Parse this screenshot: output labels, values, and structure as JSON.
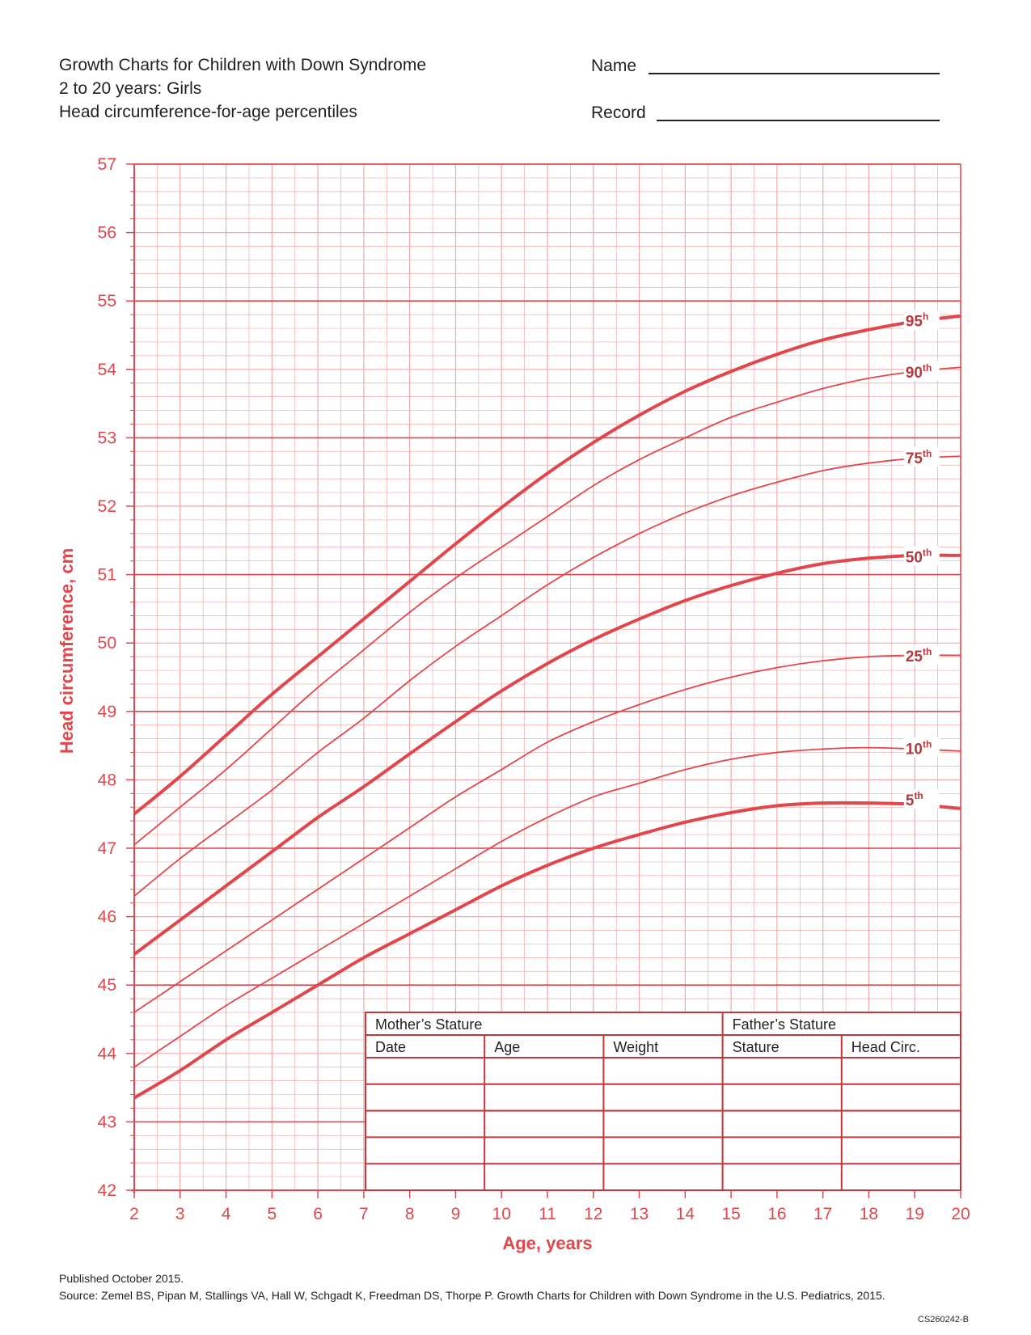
{
  "header": {
    "title": "Growth Charts for Children with Down Syndrome",
    "subtitle": "2 to 20 years: Girls",
    "measure": "Head circumference-for-age percentiles",
    "name_label": "Name",
    "record_label": "Record"
  },
  "chart_data": {
    "type": "line",
    "xlabel": "Age, years",
    "ylabel": "Head circumference, cm",
    "xlim": [
      2,
      20
    ],
    "ylim": [
      42,
      57
    ],
    "x_ticks": [
      2,
      3,
      4,
      5,
      6,
      7,
      8,
      9,
      10,
      11,
      12,
      13,
      14,
      15,
      16,
      17,
      18,
      19,
      20
    ],
    "y_ticks": [
      42,
      43,
      44,
      45,
      46,
      47,
      48,
      49,
      50,
      51,
      52,
      53,
      54,
      55,
      56,
      57
    ],
    "grid": true,
    "line_color": "#e0474c",
    "x": [
      2,
      3,
      4,
      5,
      6,
      7,
      8,
      9,
      10,
      11,
      12,
      13,
      14,
      15,
      16,
      17,
      18,
      19,
      20
    ],
    "series": [
      {
        "name": "5th",
        "sup": "th",
        "num": "5",
        "label_x": 18.8,
        "label_y": 47.7,
        "bold": true,
        "values": [
          43.35,
          43.75,
          44.2,
          44.6,
          45.0,
          45.4,
          45.75,
          46.1,
          46.45,
          46.75,
          47.0,
          47.2,
          47.38,
          47.52,
          47.62,
          47.66,
          47.66,
          47.64,
          47.58
        ]
      },
      {
        "name": "10th",
        "sup": "th",
        "num": "10",
        "label_x": 18.8,
        "label_y": 48.45,
        "bold": false,
        "values": [
          43.8,
          44.25,
          44.7,
          45.1,
          45.5,
          45.9,
          46.3,
          46.7,
          47.1,
          47.45,
          47.75,
          47.95,
          48.15,
          48.3,
          48.4,
          48.45,
          48.47,
          48.45,
          48.42
        ]
      },
      {
        "name": "25th",
        "sup": "th",
        "num": "25",
        "label_x": 18.8,
        "label_y": 49.8,
        "bold": false,
        "values": [
          44.6,
          45.05,
          45.5,
          45.95,
          46.4,
          46.85,
          47.3,
          47.75,
          48.15,
          48.55,
          48.85,
          49.1,
          49.32,
          49.5,
          49.64,
          49.74,
          49.8,
          49.82,
          49.82
        ]
      },
      {
        "name": "50th",
        "sup": "th",
        "num": "50",
        "label_x": 18.8,
        "label_y": 51.25,
        "bold": true,
        "values": [
          45.45,
          45.95,
          46.45,
          46.95,
          47.45,
          47.9,
          48.38,
          48.85,
          49.3,
          49.7,
          50.05,
          50.35,
          50.62,
          50.84,
          51.02,
          51.16,
          51.24,
          51.28,
          51.28
        ]
      },
      {
        "name": "75th",
        "sup": "th",
        "num": "75",
        "label_x": 18.8,
        "label_y": 52.7,
        "bold": false,
        "values": [
          46.3,
          46.85,
          47.35,
          47.85,
          48.4,
          48.9,
          49.45,
          49.95,
          50.4,
          50.85,
          51.25,
          51.6,
          51.9,
          52.15,
          52.35,
          52.52,
          52.63,
          52.7,
          52.73
        ]
      },
      {
        "name": "90th",
        "sup": "th",
        "num": "90",
        "label_x": 18.8,
        "label_y": 53.95,
        "bold": false,
        "values": [
          47.05,
          47.6,
          48.15,
          48.75,
          49.35,
          49.9,
          50.45,
          50.95,
          51.4,
          51.85,
          52.3,
          52.68,
          53.0,
          53.3,
          53.52,
          53.72,
          53.87,
          53.97,
          54.03
        ]
      },
      {
        "name": "95h",
        "sup": "h",
        "num": "95",
        "label_x": 18.8,
        "label_y": 54.7,
        "bold": true,
        "values": [
          47.5,
          48.05,
          48.65,
          49.25,
          49.8,
          50.35,
          50.9,
          51.45,
          51.98,
          52.48,
          52.93,
          53.33,
          53.68,
          53.97,
          54.22,
          54.43,
          54.58,
          54.7,
          54.78
        ]
      }
    ]
  },
  "table": {
    "mother_header": "Mother’s Stature",
    "father_header": "Father’s Stature",
    "columns": [
      "Date",
      "Age",
      "Weight",
      "Stature",
      "Head Circ."
    ],
    "blank_rows": 5
  },
  "footer": {
    "published": "Published October 2015.",
    "source": "Source: Zemel BS, Pipan M, Stallings VA, Hall W, Schgadt K, Freedman DS, Thorpe P. Growth Charts for Children with Down Syndrome in the U.S. Pediatrics, 2015.",
    "code": "CS260242-B"
  }
}
